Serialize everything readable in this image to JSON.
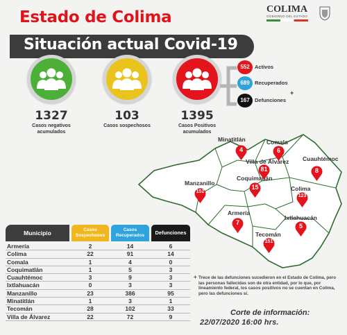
{
  "header": {
    "title": "Estado de Colima",
    "subtitle": "Situación actual Covid-19",
    "logo_name": "COLIMA",
    "logo_sub": "GOBIERNO DEL ESTADO"
  },
  "stats": [
    {
      "value": "1327",
      "label_1": "Casos negativos",
      "label_2": "acumulados",
      "color": "#4caf37",
      "ring": "#d5d5d5"
    },
    {
      "value": "103",
      "label_1": "Casos sospechosos",
      "label_2": "",
      "color": "#eac31c",
      "ring": "#d5d5d5"
    },
    {
      "value": "1395",
      "label_1": "Casos Positivos",
      "label_2": "acumulados",
      "color": "#e3141b",
      "ring": "#d5d5d5"
    }
  ],
  "breakdown": [
    {
      "value": "552",
      "label": "Activos",
      "color": "#e3141b"
    },
    {
      "value": "689",
      "label": "Recuperados",
      "color": "#2fa3dd"
    },
    {
      "value": "167",
      "label": "Defunciones",
      "marker": "+",
      "color": "#111111"
    }
  ],
  "map": {
    "municipios": [
      {
        "name": "Minatitlán",
        "value": "4"
      },
      {
        "name": "Comala",
        "value": "6"
      },
      {
        "name": "Villa de Álvarez",
        "value": "81"
      },
      {
        "name": "Cuauhtémoc",
        "value": "8"
      },
      {
        "name": "Manzanillo",
        "value": "152"
      },
      {
        "name": "Coquimatlán",
        "value": "15"
      },
      {
        "name": "Colima",
        "value": "123"
      },
      {
        "name": "Armería",
        "value": "7"
      },
      {
        "name": "Ixtlahuacán",
        "value": "5"
      },
      {
        "name": "Tecomán",
        "value": "151"
      }
    ],
    "pin_color": "#e3141b"
  },
  "table": {
    "headers": {
      "municipio": "Municipio",
      "sospechosos_1": "Casos",
      "sospechosos_2": "Sospechosos",
      "recuperados_1": "Casos",
      "recuperados_2": "Recuperados",
      "defunciones": "Defunciones"
    },
    "rows": [
      {
        "municipio": "Armería",
        "sospechosos": "2",
        "recuperados": "14",
        "defunciones": "6"
      },
      {
        "municipio": "Colima",
        "sospechosos": "22",
        "recuperados": "91",
        "defunciones": "14"
      },
      {
        "municipio": "Comala",
        "sospechosos": "1",
        "recuperados": "4",
        "defunciones": "0"
      },
      {
        "municipio": "Coquimatlán",
        "sospechosos": "1",
        "recuperados": "5",
        "defunciones": "3"
      },
      {
        "municipio": "Cuauhtémoc",
        "sospechosos": "3",
        "recuperados": "9",
        "defunciones": "3"
      },
      {
        "municipio": "Ixtlahuacán",
        "sospechosos": "0",
        "recuperados": "3",
        "defunciones": "3"
      },
      {
        "municipio": "Manzanillo",
        "sospechosos": "23",
        "recuperados": "386",
        "defunciones": "95"
      },
      {
        "municipio": "Minatitlán",
        "sospechosos": "1",
        "recuperados": "3",
        "defunciones": "1"
      },
      {
        "municipio": "Tecomán",
        "sospechosos": "28",
        "recuperados": "102",
        "defunciones": "33"
      },
      {
        "municipio": "Villa de Álvarez",
        "sospechosos": "22",
        "recuperados": "72",
        "defunciones": "9"
      }
    ]
  },
  "note": {
    "marker": "+",
    "text": "Trece de las defunciones sucedieron en el Estado de Colima, pero las personas fallecidas son de otra entidad, por lo que, por lineamiento federal, los casos positivos no se cuentan en Colima, pero las defunciones sí."
  },
  "cutoff": {
    "label": "Corte de información:",
    "datetime": "22/07/2020 16:00 hrs."
  }
}
